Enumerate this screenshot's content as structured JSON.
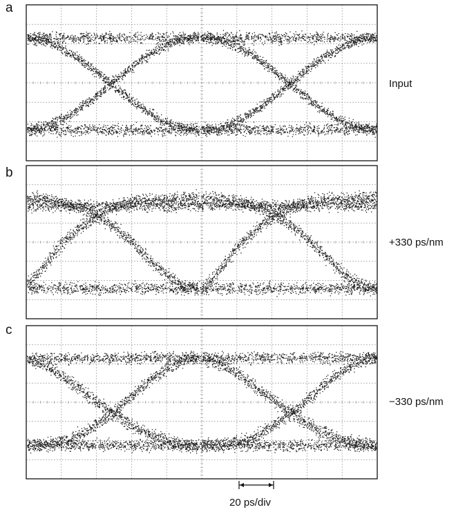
{
  "figure": {
    "panels": [
      {
        "letter": "a",
        "label": "Input",
        "shape": "symmetric"
      },
      {
        "letter": "b",
        "label": "+330 ps/nm",
        "shape": "positive"
      },
      {
        "letter": "c",
        "label": "−330 ps/nm",
        "shape": "negative"
      }
    ],
    "scale_label": "20 ps/div",
    "colors": {
      "trace": "#1a1a1a",
      "grid": "#9a9a9a",
      "frame": "#222222"
    }
  }
}
